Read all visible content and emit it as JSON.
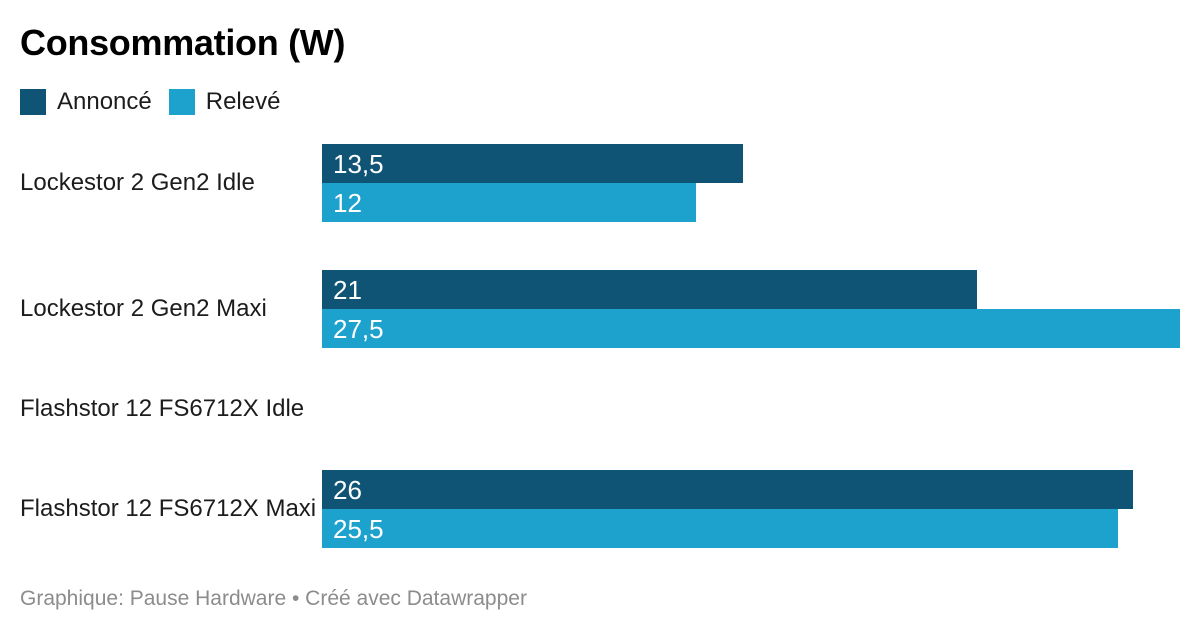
{
  "title": "Consommation (W)",
  "footer": {
    "text": "Graphique: Pause Hardware • Créé avec Datawrapper"
  },
  "chart_data": {
    "type": "bar",
    "orientation": "horizontal",
    "title": "Consommation (W)",
    "unit": "W",
    "categories": [
      "Lockestor 2 Gen2 Idle",
      "Lockestor 2 Gen2 Maxi",
      "Flashstor 12 FS6712X Idle",
      "Flashstor 12 FS6712X Maxi"
    ],
    "series": [
      {
        "name": "Annoncé",
        "color": "#0f5475",
        "values": [
          13.5,
          21,
          null,
          26
        ],
        "value_labels": [
          "13,5",
          "21",
          null,
          "26"
        ]
      },
      {
        "name": "Relevé",
        "color": "#1da1cd",
        "values": [
          12,
          27.5,
          null,
          25.5
        ],
        "value_labels": [
          "12",
          "27,5",
          null,
          "25,5"
        ]
      }
    ],
    "xlim": [
      0,
      27.5
    ],
    "grid": false,
    "axis_ticks": "none",
    "legend_position": "top-left",
    "value_labels_position": "inside-start",
    "missing_rows": [
      "Flashstor 12 FS6712X Idle"
    ]
  }
}
